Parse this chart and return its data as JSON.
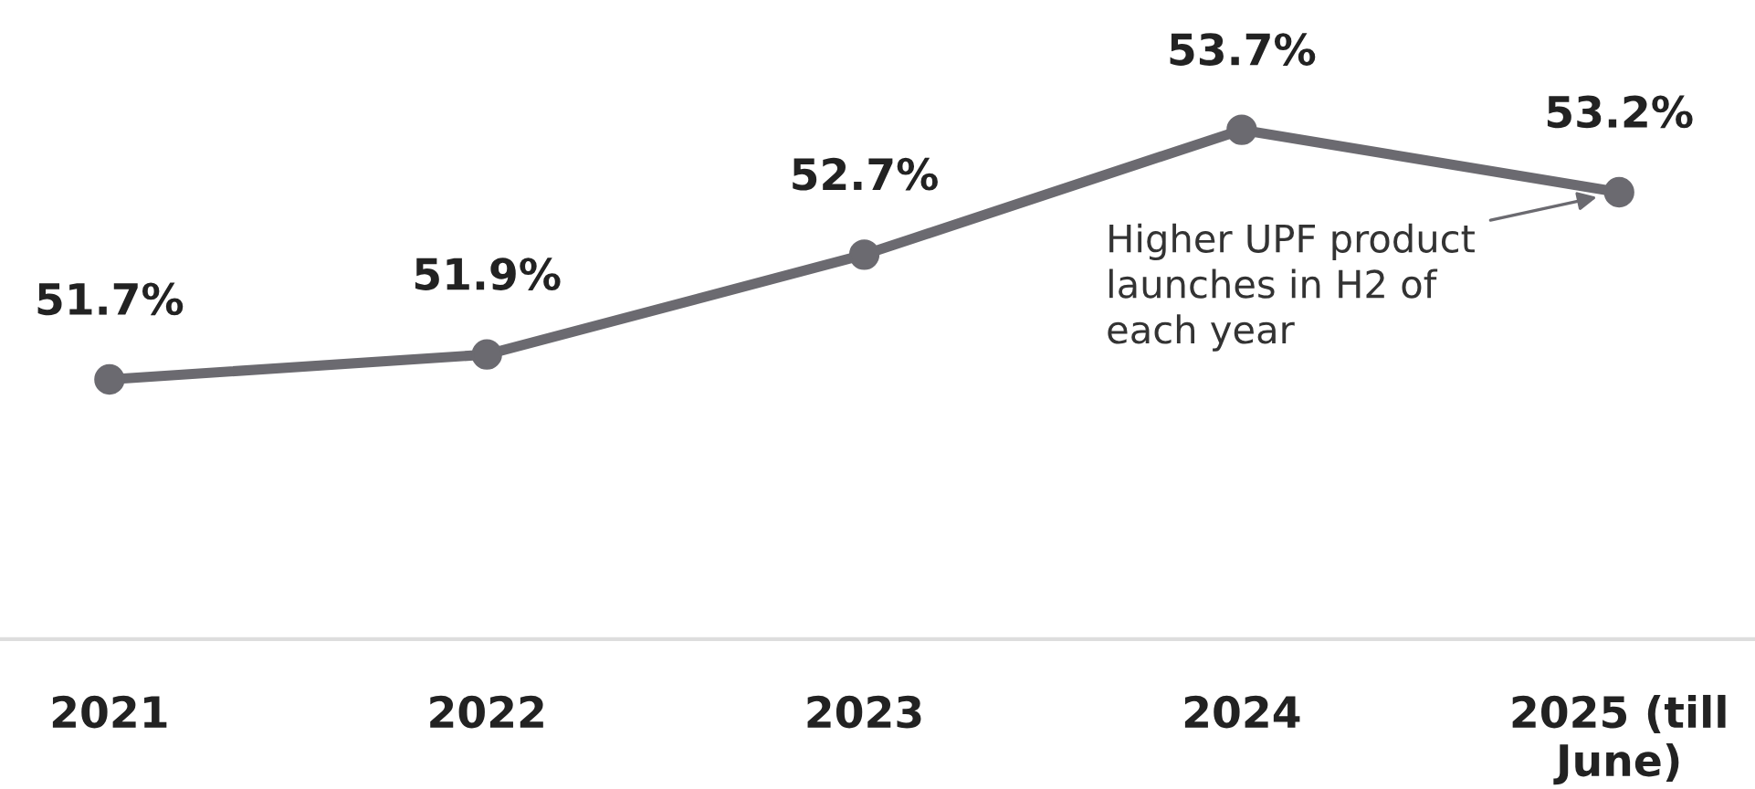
{
  "chart_data": {
    "type": "line",
    "categories": [
      "2021",
      "2022",
      "2023",
      "2024",
      "2025 (till June)"
    ],
    "series": [
      {
        "color": "#6b6a70",
        "values": [
          51.7,
          51.9,
          52.7,
          53.7,
          53.2
        ],
        "value_labels": [
          "51.7%",
          "51.9%",
          "52.7%",
          "53.7%",
          "53.2%"
        ]
      }
    ],
    "marker": "circle",
    "line_style": "solid",
    "grid": false,
    "tick_labels": "x",
    "annotations": [
      "Higher UPF product launches in H2 of each year"
    ]
  }
}
